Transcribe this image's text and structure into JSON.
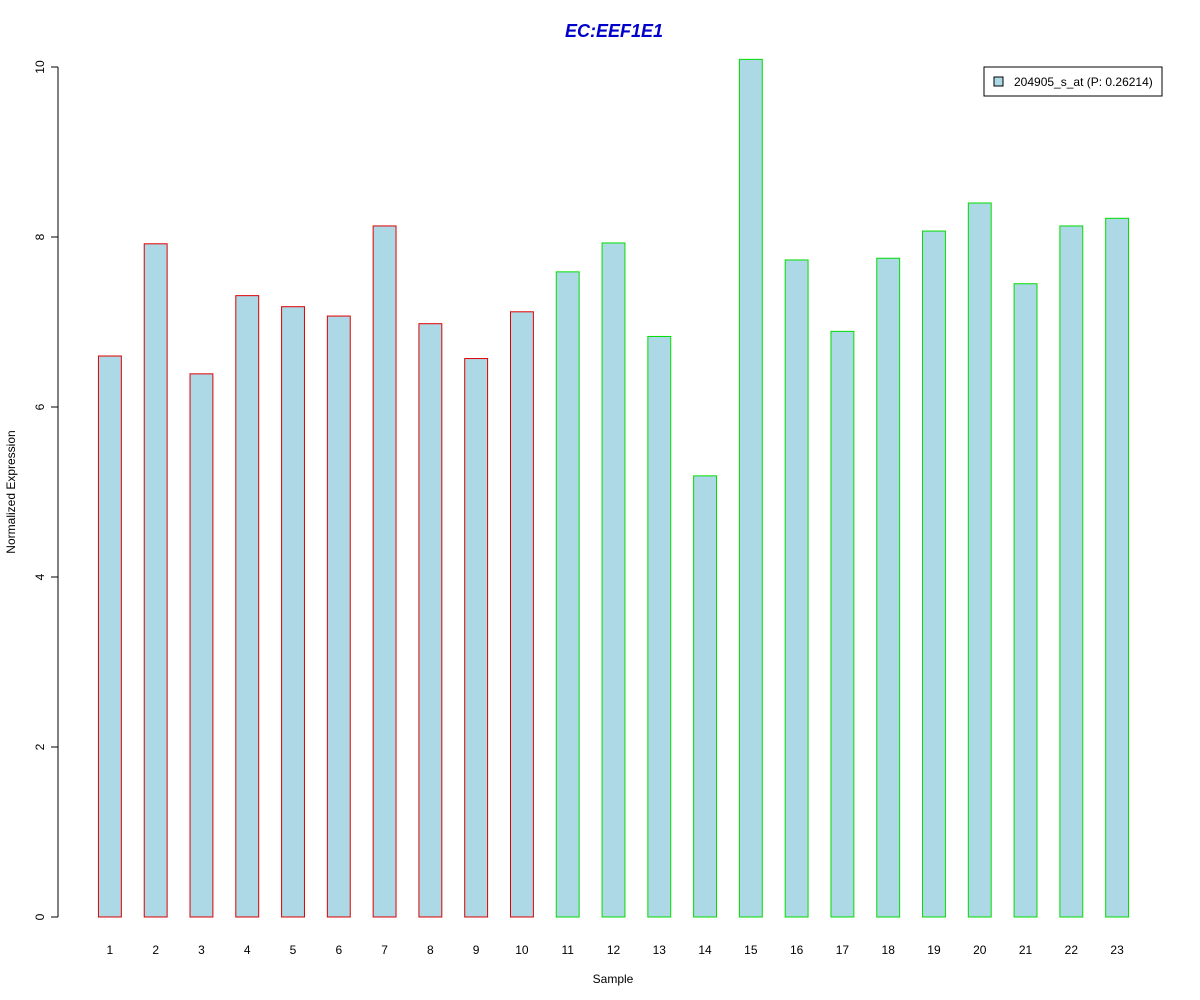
{
  "chart_data": {
    "type": "bar",
    "title": "EC:EEF1E1",
    "title_color": "#0000cc",
    "xlabel": "Sample",
    "ylabel": "Normalized Expression",
    "ylim": [
      0,
      10
    ],
    "yticks": [
      0,
      2,
      4,
      6,
      8,
      10
    ],
    "grid": false,
    "legend_position": "top-right",
    "categories": [
      "1",
      "2",
      "3",
      "4",
      "5",
      "6",
      "7",
      "8",
      "9",
      "10",
      "11",
      "12",
      "13",
      "14",
      "15",
      "16",
      "17",
      "18",
      "19",
      "20",
      "21",
      "22",
      "23"
    ],
    "series": [
      {
        "name": "204905_s_at (P: 0.26214)",
        "fill": "#add8e6",
        "values": [
          6.6,
          7.92,
          6.39,
          7.31,
          7.18,
          7.07,
          8.13,
          6.98,
          6.57,
          7.12,
          7.59,
          7.93,
          6.83,
          5.19,
          10.09,
          7.73,
          6.89,
          7.75,
          8.07,
          8.4,
          7.45,
          8.13,
          8.22
        ]
      }
    ],
    "group_colors": [
      "#dd0000",
      "#dd0000",
      "#dd0000",
      "#dd0000",
      "#dd0000",
      "#dd0000",
      "#dd0000",
      "#dd0000",
      "#dd0000",
      "#dd0000",
      "#00dd00",
      "#00dd00",
      "#00dd00",
      "#00dd00",
      "#00dd00",
      "#00dd00",
      "#00dd00",
      "#00dd00",
      "#00dd00",
      "#00dd00",
      "#00dd00",
      "#00dd00",
      "#00dd00"
    ]
  }
}
